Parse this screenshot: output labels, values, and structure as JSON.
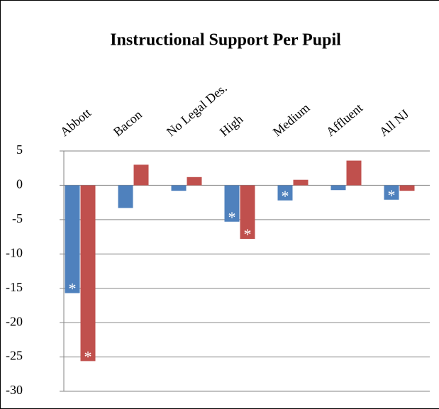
{
  "chart_data": {
    "type": "bar",
    "title": "Instructional Support Per Pupil",
    "categories": [
      "Abbott",
      "Bacon",
      "No Legal Des.",
      "High",
      "Medium",
      "Affluent",
      "All NJ"
    ],
    "series": [
      {
        "color": "#4f81bd",
        "values": [
          -15.7,
          -3.3,
          -0.8,
          -5.3,
          -2.2,
          -0.7,
          -2.1
        ],
        "notes": [
          "*",
          null,
          null,
          "*",
          "*",
          null,
          "*"
        ]
      },
      {
        "color": "#c0504d",
        "values": [
          -25.6,
          3.0,
          1.2,
          -7.8,
          0.8,
          3.6,
          -0.8
        ],
        "notes": [
          "*",
          null,
          null,
          "*",
          null,
          null,
          null
        ]
      }
    ],
    "ylim": [
      -30,
      5
    ],
    "yticks": [
      5,
      0,
      -5,
      -10,
      -15,
      -20,
      -25,
      -30
    ],
    "grid": true
  }
}
